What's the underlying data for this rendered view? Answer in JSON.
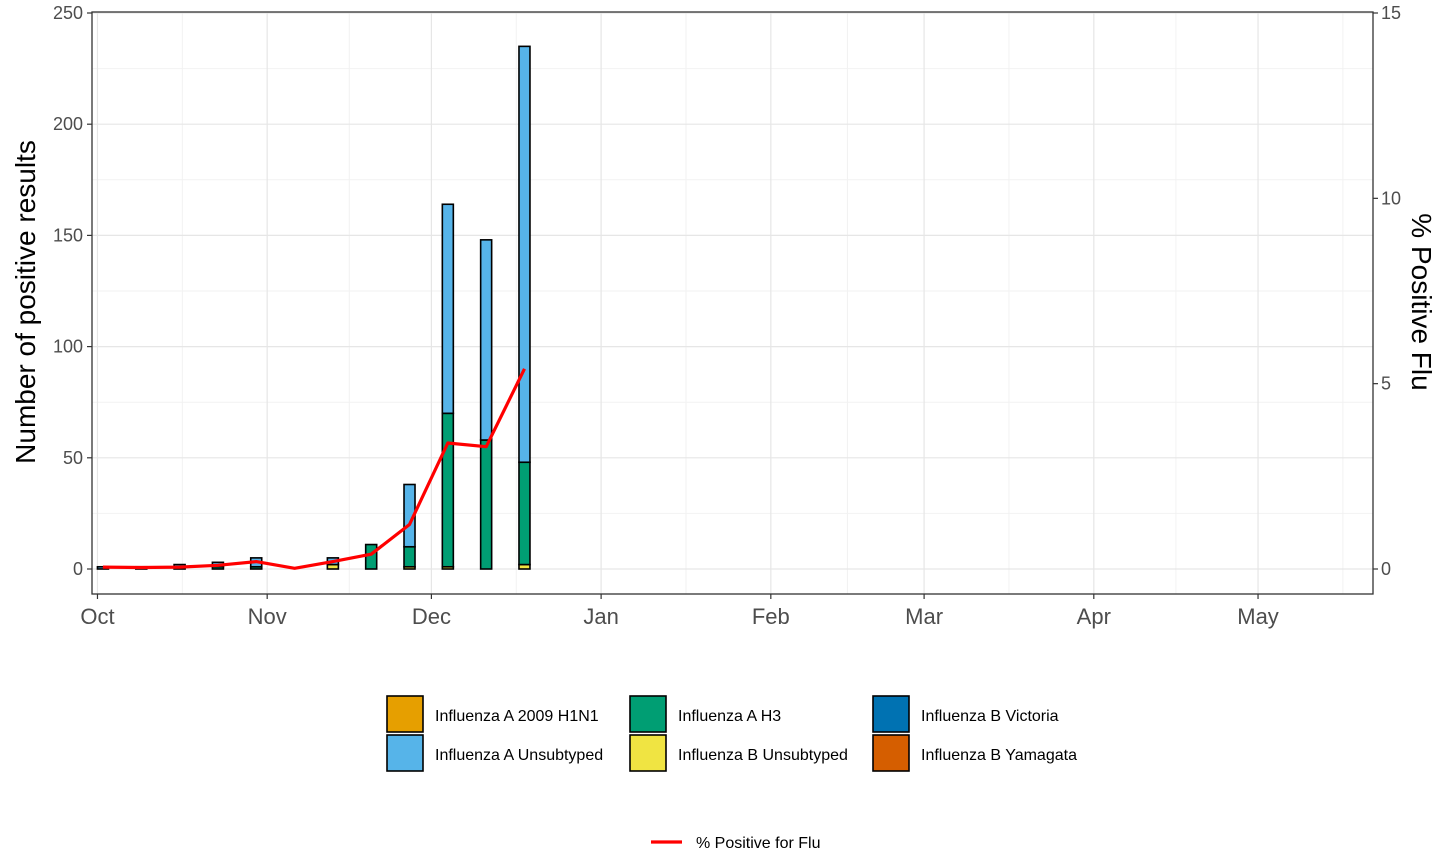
{
  "chart_data": {
    "type": "bar",
    "title": "",
    "ylabel": "Number of positive results",
    "y2label": "% Positive Flu",
    "ylim": [
      0,
      250
    ],
    "y2lim": [
      0,
      15
    ],
    "y_ticks": [
      0,
      50,
      100,
      150,
      200,
      250
    ],
    "y2_ticks": [
      0,
      5,
      10,
      15
    ],
    "x_month_labels": [
      "Oct",
      "Nov",
      "Dec",
      "Jan",
      "Feb",
      "Mar",
      "Apr",
      "May"
    ],
    "x_month_dates": [
      "2022-10-01",
      "2022-11-01",
      "2022-12-01",
      "2023-01-01",
      "2023-02-01",
      "2023-03-01",
      "2023-04-01",
      "2023-05-01"
    ],
    "xlim": [
      "2022-09-30",
      "2023-05-22"
    ],
    "grid": true,
    "legend_position": "bottom",
    "weeks": [
      "2022-10-02",
      "2022-10-09",
      "2022-10-16",
      "2022-10-23",
      "2022-10-30",
      "2022-11-06",
      "2022-11-13",
      "2022-11-20",
      "2022-11-27",
      "2022-12-04",
      "2022-12-11",
      "2022-12-18"
    ],
    "series": [
      {
        "name": "Influenza A 2009 H1N1",
        "color": "#E69F00",
        "values": [
          0,
          0,
          0,
          0,
          0,
          0,
          0,
          0,
          0,
          0,
          0,
          0
        ]
      },
      {
        "name": "Influenza A H3",
        "color": "#009E73",
        "values": [
          0,
          0,
          1,
          1,
          1,
          0,
          0,
          11,
          9,
          69,
          58,
          46
        ]
      },
      {
        "name": "Influenza B Victoria",
        "color": "#0072B2",
        "values": [
          0,
          0,
          0,
          0,
          0,
          0,
          0,
          0,
          0,
          0,
          0,
          0
        ]
      },
      {
        "name": "Influenza A Unsubtyped",
        "color": "#56B4E9",
        "values": [
          1,
          1,
          1,
          2,
          4,
          0,
          3,
          0,
          28,
          94,
          90,
          187
        ]
      },
      {
        "name": "Influenza B Unsubtyped",
        "color": "#F0E442",
        "values": [
          0,
          0,
          0,
          0,
          0,
          0,
          2,
          0,
          1,
          1,
          0,
          2
        ]
      },
      {
        "name": "Influenza B Yamagata",
        "color": "#D55E00",
        "values": [
          0,
          0,
          0,
          0,
          0,
          0,
          0,
          0,
          0,
          0,
          0,
          0
        ]
      }
    ],
    "line_series": {
      "name": "% Positive for Flu",
      "color": "#FF0000",
      "values": [
        0.05,
        0.04,
        0.05,
        0.1,
        0.2,
        0.02,
        0.2,
        0.4,
        1.2,
        3.4,
        3.3,
        5.4
      ]
    }
  }
}
